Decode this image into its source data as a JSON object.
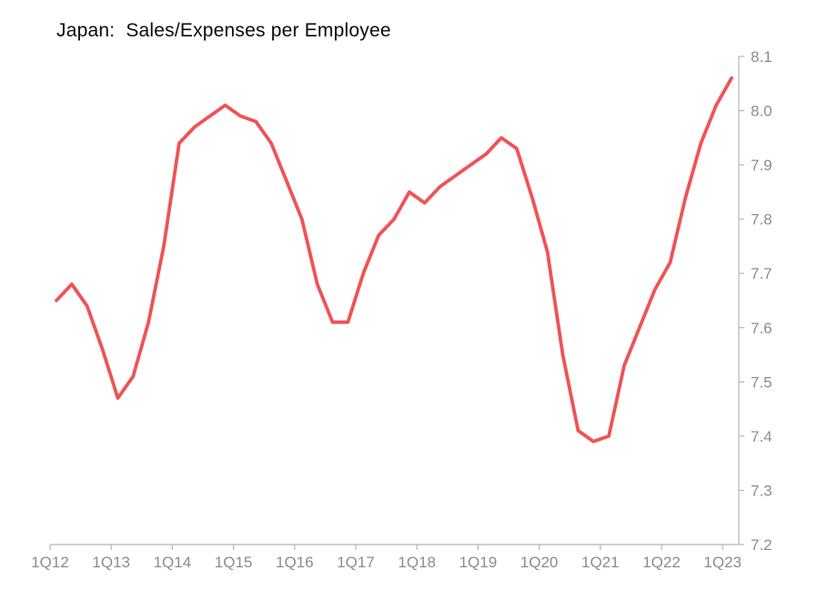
{
  "title": "Japan:  Sales/Expenses per Employee",
  "chart_data": {
    "type": "line",
    "title": "Japan:  Sales/Expenses per Employee",
    "series_name": "Sales/Expenses per Employee",
    "x": [
      "1Q12",
      "2Q12",
      "3Q12",
      "4Q12",
      "1Q13",
      "2Q13",
      "3Q13",
      "4Q13",
      "1Q14",
      "2Q14",
      "3Q14",
      "4Q14",
      "1Q15",
      "2Q15",
      "3Q15",
      "4Q15",
      "1Q16",
      "2Q16",
      "3Q16",
      "4Q16",
      "1Q17",
      "2Q17",
      "3Q17",
      "4Q17",
      "1Q18",
      "2Q18",
      "3Q18",
      "4Q18",
      "1Q19",
      "2Q19",
      "3Q19",
      "4Q19",
      "1Q20",
      "2Q20",
      "3Q20",
      "4Q20",
      "1Q21",
      "2Q21",
      "3Q21",
      "4Q21",
      "1Q22",
      "2Q22",
      "3Q22",
      "4Q22",
      "1Q23"
    ],
    "values": [
      7.65,
      7.68,
      7.64,
      7.56,
      7.47,
      7.51,
      7.61,
      7.75,
      7.94,
      7.97,
      7.99,
      8.01,
      7.99,
      7.98,
      7.94,
      7.87,
      7.8,
      7.68,
      7.61,
      7.61,
      7.7,
      7.77,
      7.8,
      7.85,
      7.83,
      7.86,
      7.88,
      7.9,
      7.92,
      7.95,
      7.93,
      7.84,
      7.74,
      7.55,
      7.41,
      7.39,
      7.4,
      7.53,
      7.6,
      7.67,
      7.72,
      7.84,
      7.94,
      8.01,
      8.06
    ],
    "x_tick_labels": [
      "1Q12",
      "1Q13",
      "1Q14",
      "1Q15",
      "1Q16",
      "1Q17",
      "1Q18",
      "1Q19",
      "1Q20",
      "1Q21",
      "1Q22",
      "1Q23"
    ],
    "y_tick_labels": [
      "8.1",
      "8.0",
      "7.9",
      "7.8",
      "7.7",
      "7.6",
      "7.5",
      "7.4",
      "7.3",
      "7.2"
    ],
    "ylim": [
      7.2,
      8.1
    ],
    "y_axis_side": "right",
    "grid": false,
    "legend_position": "none",
    "colors": {
      "line": "#ef5356",
      "axis": "#b5b5b5",
      "tick_label": "#8c8c8c",
      "title": "#0a0a0a",
      "background": "#ffffff"
    }
  }
}
